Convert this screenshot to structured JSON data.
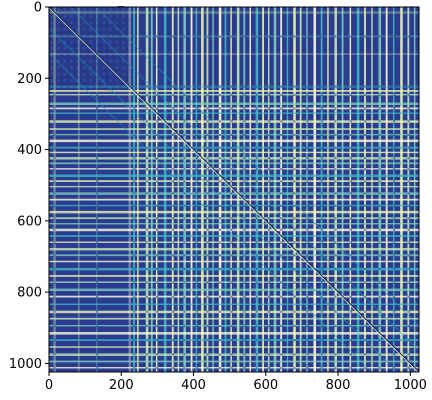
{
  "chart_data": {
    "type": "heatmap",
    "title": "_",
    "xlabel": "",
    "ylabel": "",
    "matrix_size": 1024,
    "xlim": [
      0,
      1024
    ],
    "ylim": [
      1024,
      0
    ],
    "x_ticks": [
      0,
      200,
      400,
      600,
      800,
      1000
    ],
    "y_ticks": [
      0,
      200,
      400,
      600,
      800,
      1000
    ],
    "x_tick_labels": [
      "0",
      "200",
      "400",
      "600",
      "800",
      "1000"
    ],
    "y_tick_labels": [
      "0",
      "200",
      "400",
      "600",
      "800",
      "1000"
    ],
    "colormap": "YlGnBu",
    "colormap_stops": [
      "#2a3c8f",
      "#225ea8",
      "#1d91c0",
      "#41b6c4",
      "#7fcdbb",
      "#c7e9b4",
      "#edf8b1",
      "#ffffd9"
    ],
    "diagonal_color": "#ffffd9",
    "grid": false,
    "legend": "none",
    "colorbar": false,
    "bright_bands": [
      12,
      80,
      130,
      220,
      233,
      244,
      268,
      282,
      296,
      318,
      340,
      356,
      372,
      392,
      406,
      421,
      436,
      452,
      470,
      486,
      502,
      520,
      538,
      555,
      572,
      590,
      606,
      622,
      640,
      658,
      676,
      694,
      712,
      732,
      752,
      770,
      790,
      810,
      832,
      852,
      872,
      892,
      912,
      932,
      952,
      972,
      992,
      1010
    ]
  }
}
